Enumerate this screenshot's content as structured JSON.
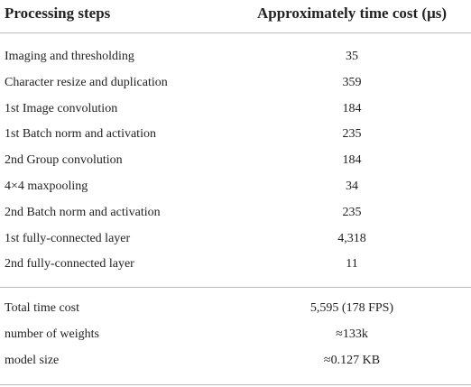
{
  "table": {
    "header": [
      "Processing steps",
      "Approximately time cost (μs)"
    ],
    "rows": [
      [
        "Imaging and thresholding",
        "35"
      ],
      [
        "Character resize and duplication",
        "359"
      ],
      [
        "1st Image convolution",
        "184"
      ],
      [
        "1st Batch norm and activation",
        "235"
      ],
      [
        "2nd Group convolution",
        "184"
      ],
      [
        "4×4 maxpooling",
        "34"
      ],
      [
        "2nd Batch norm and activation",
        "235"
      ],
      [
        "1st fully-connected layer",
        "4,318"
      ],
      [
        "2nd fully-connected layer",
        "11"
      ]
    ],
    "summary": [
      [
        "Total time cost",
        "5,595 (178 FPS)"
      ],
      [
        "number of weights",
        "≈133k"
      ],
      [
        "model size",
        "≈0.127 KB"
      ]
    ]
  }
}
